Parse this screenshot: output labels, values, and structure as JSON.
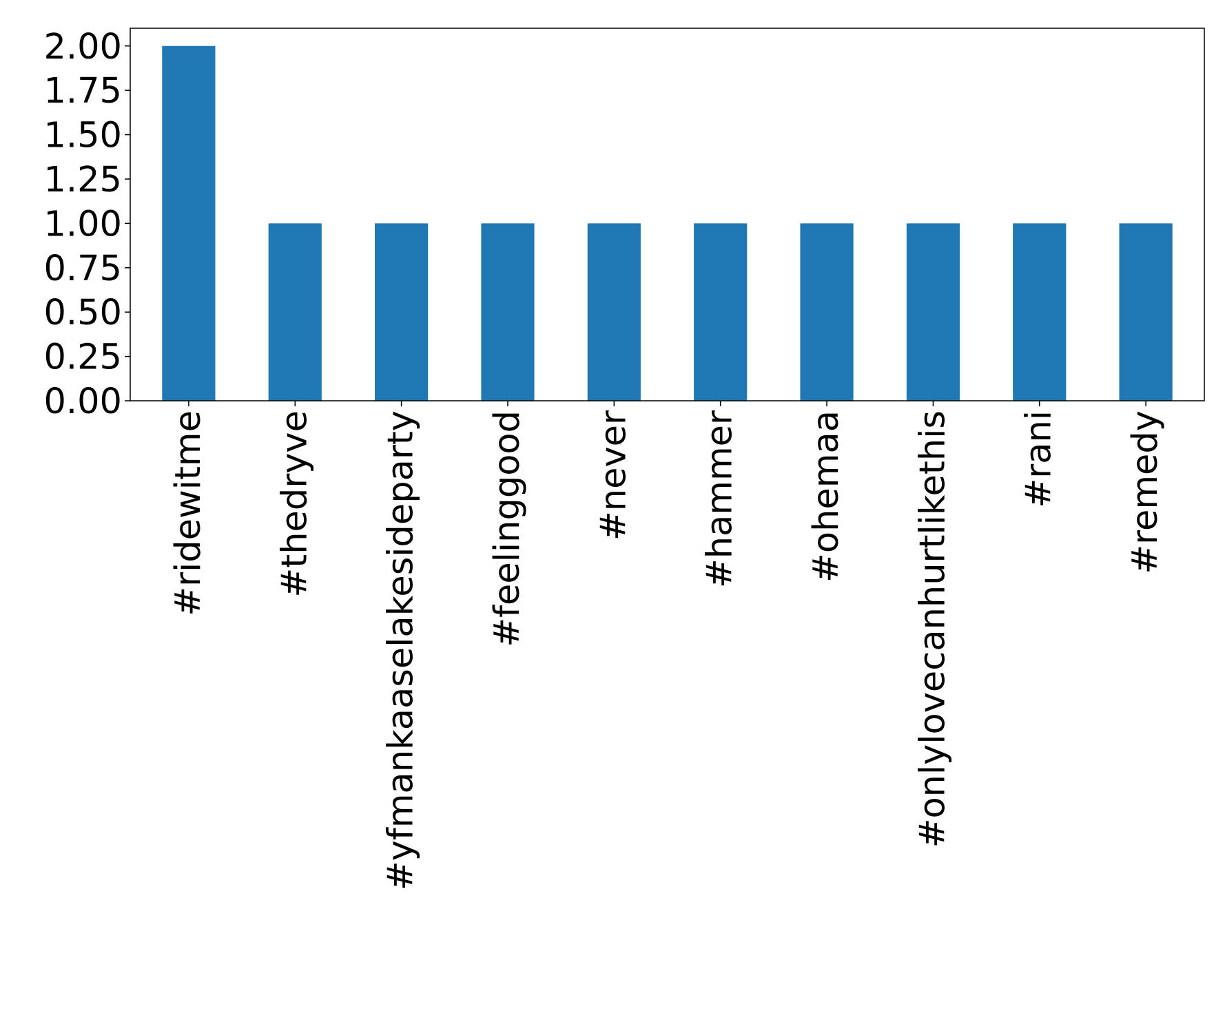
{
  "chart_data": {
    "type": "bar",
    "title": "",
    "xlabel": "",
    "ylabel": "",
    "categories": [
      "#ridewitme",
      "#thedryve",
      "#yfmankaaselakesideparty",
      "#feelinggood",
      "#never",
      "#hammer",
      "#ohemaa",
      "#onlylovecanhurtlikethis",
      "#rani",
      "#remedy"
    ],
    "values": [
      2,
      1,
      1,
      1,
      1,
      1,
      1,
      1,
      1,
      1
    ],
    "ylim": [
      0,
      2.1
    ],
    "yticks": [
      "0.00",
      "0.25",
      "0.50",
      "0.75",
      "1.00",
      "1.25",
      "1.50",
      "1.75",
      "2.00"
    ],
    "bar_color": "#1f77b4",
    "grid": false,
    "legend": "none"
  }
}
